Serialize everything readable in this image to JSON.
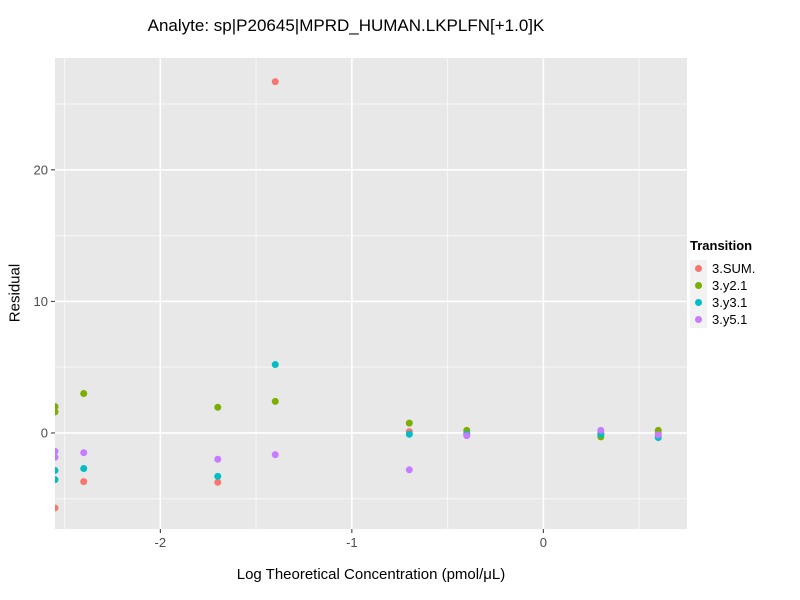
{
  "chart_data": {
    "type": "scatter",
    "title": "Analyte: sp|P20645|MPRD_HUMAN.LKPLFN[+1.0]K",
    "xlabel": "Log Theoretical Concentration (pmol/μL)",
    "ylabel": "Residual",
    "xlim": [
      -2.55,
      0.75
    ],
    "ylim": [
      -7.3,
      28.5
    ],
    "x_ticks": {
      "major": [
        -2,
        -1,
        0
      ],
      "labels": [
        "-2",
        "-1",
        "0"
      ],
      "minor": [
        -2.5,
        -1.5,
        -0.5,
        0.5
      ]
    },
    "y_ticks": {
      "major": [
        0,
        10,
        20
      ],
      "labels": [
        "0",
        "10",
        "20"
      ],
      "minor": [
        -5,
        5,
        15,
        25
      ]
    },
    "grid": "major+minor",
    "legend": {
      "title": "Transition",
      "position": "right"
    },
    "series": [
      {
        "name": "3.SUM.",
        "color": "#F8766D",
        "points": [
          [
            -2.55,
            -5.7
          ],
          [
            -2.4,
            -3.7
          ],
          [
            -1.7,
            -3.75
          ],
          [
            -1.4,
            26.7
          ],
          [
            -0.7,
            0.1
          ],
          [
            -0.4,
            0.0
          ],
          [
            0.3,
            0.0
          ],
          [
            0.6,
            0.0
          ]
        ]
      },
      {
        "name": "3.y2.1",
        "color": "#7CAE00",
        "points": [
          [
            -2.55,
            2.0
          ],
          [
            -2.55,
            1.6
          ],
          [
            -2.4,
            3.0
          ],
          [
            -1.7,
            1.95
          ],
          [
            -1.4,
            2.4
          ],
          [
            -0.7,
            0.75
          ],
          [
            -0.4,
            0.2
          ],
          [
            0.3,
            -0.3
          ],
          [
            0.6,
            0.2
          ]
        ]
      },
      {
        "name": "3.y3.1",
        "color": "#00BFC4",
        "points": [
          [
            -2.55,
            -2.85
          ],
          [
            -2.55,
            -3.55
          ],
          [
            -2.4,
            -2.7
          ],
          [
            -1.7,
            -3.3
          ],
          [
            -1.4,
            5.2
          ],
          [
            -0.7,
            -0.1
          ],
          [
            -0.4,
            -0.1
          ],
          [
            0.3,
            -0.1
          ],
          [
            0.6,
            -0.35
          ]
        ]
      },
      {
        "name": "3.y5.1",
        "color": "#C77CFF",
        "points": [
          [
            -2.55,
            -1.4
          ],
          [
            -2.55,
            -1.85
          ],
          [
            -2.4,
            -1.5
          ],
          [
            -1.7,
            -2.0
          ],
          [
            -1.4,
            -1.65
          ],
          [
            -0.7,
            -2.8
          ],
          [
            -0.4,
            -0.2
          ],
          [
            0.3,
            0.2
          ],
          [
            0.6,
            -0.15
          ]
        ]
      }
    ]
  },
  "colors": {
    "panel_bg": "#E8E8E8",
    "grid_major": "#FFFFFF",
    "grid_minor": "rgba(255,255,255,0.65)",
    "tick_label": "#4D4D4D",
    "tick_mark": "#333333",
    "legend_key_bg": "#F2F2F2"
  }
}
